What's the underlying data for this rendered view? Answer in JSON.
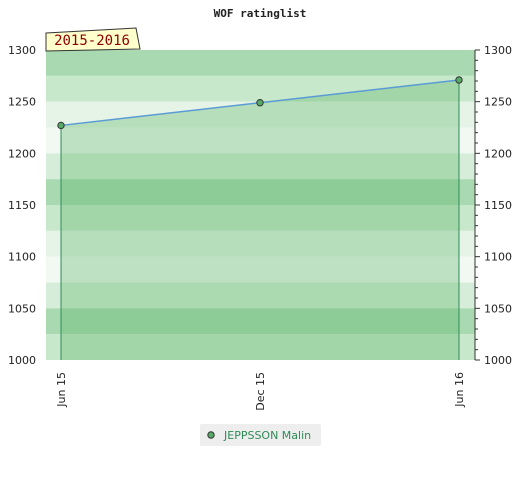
{
  "chart_data": {
    "type": "area",
    "title": "WOF ratinglist",
    "period_label": "2015-2016",
    "x_categories": [
      "Jun 15",
      "Dec 15",
      "Jun 16"
    ],
    "series": [
      {
        "name": "JEPPSSON Malin",
        "values": [
          1227,
          1249,
          1271
        ]
      }
    ],
    "ylim": [
      1000,
      1300
    ],
    "y_ticks": [
      1000,
      1050,
      1100,
      1150,
      1200,
      1250,
      1300
    ],
    "legend_position": "bottom",
    "colors": {
      "line": "#5a9bd5",
      "area_fill": "#5cb567",
      "marker_fill": "#55aa66",
      "marker_stroke": "#333333",
      "bands": [
        "#a8d9b0",
        "#c8e8cc",
        "#e6f4e8",
        "#f2f9f3",
        "#d6eed9"
      ],
      "period_box_fill": "#ffffcc",
      "legend_box_fill": "#eeeeee"
    }
  }
}
